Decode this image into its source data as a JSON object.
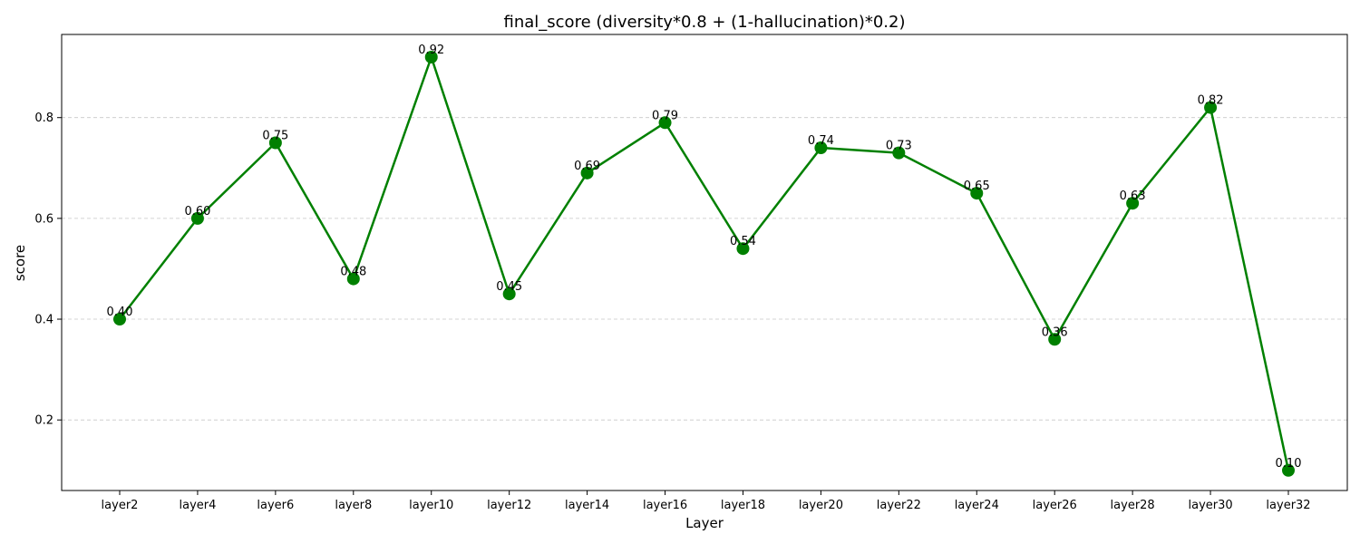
{
  "chart_data": {
    "type": "line",
    "title": "final_score (diversity*0.8 + (1-hallucination)*0.2)",
    "xlabel": "Layer",
    "ylabel": "score",
    "categories": [
      "layer2",
      "layer4",
      "layer6",
      "layer8",
      "layer10",
      "layer12",
      "layer14",
      "layer16",
      "layer18",
      "layer20",
      "layer22",
      "layer24",
      "layer26",
      "layer28",
      "layer30",
      "layer32"
    ],
    "series": [
      {
        "values": [
          0.4,
          0.6,
          0.75,
          0.48,
          0.92,
          0.45,
          0.69,
          0.79,
          0.54,
          0.74,
          0.73,
          0.65,
          0.36,
          0.63,
          0.82,
          0.1
        ],
        "labels": [
          "0.40",
          "0.60",
          "0.75",
          "0.48",
          "0.92",
          "0.45",
          "0.69",
          "0.79",
          "0.54",
          "0.74",
          "0.73",
          "0.65",
          "0.36",
          "0.63",
          "0.82",
          "0.10"
        ],
        "color": "#008000"
      }
    ],
    "ylim": [
      0.06,
      0.965
    ],
    "yticks": [
      0.2,
      0.4,
      0.6,
      0.8
    ],
    "ytick_labels": [
      "0.2",
      "0.4",
      "0.6",
      "0.8"
    ],
    "grid": "y-dashed",
    "legend": "none"
  }
}
